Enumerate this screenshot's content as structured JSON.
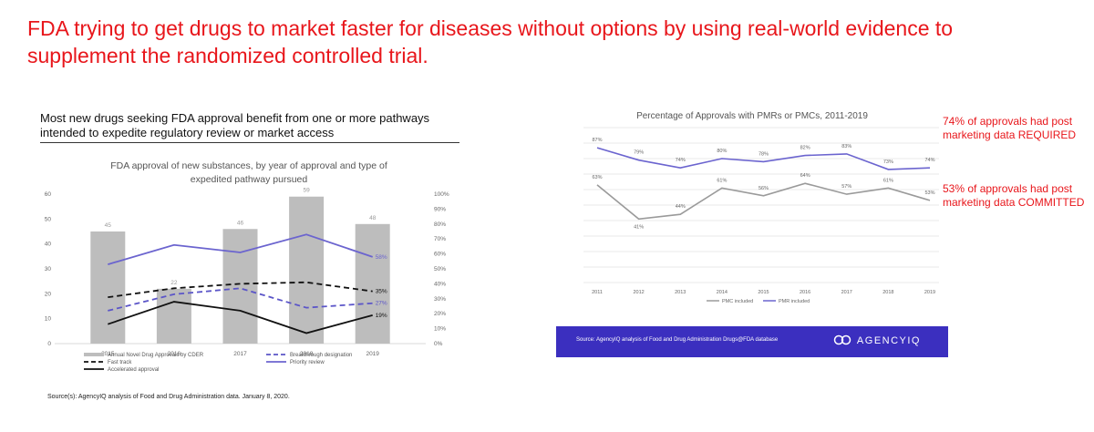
{
  "headline": "FDA trying to get drugs to market faster for diseases without options by using real-world evidence to supplement the randomized controlled trial.",
  "left_panel": {
    "title": "Most new drugs seeking FDA approval benefit from one or more pathways intended to expedite regulatory review or market access",
    "source": "Source(s): AgencyIQ analysis of Food and Drug Administration data. January 8, 2020."
  },
  "right_panel": {
    "source": "Source: AgencyIQ analysis of Food and Drug Administration Drugs@FDA database",
    "logo_text": "AGENCYIQ"
  },
  "annotations": {
    "required": "74% of approvals had post marketing data REQUIRED",
    "committed": "53% of approvals had post marketing data COMMITTED"
  },
  "colors": {
    "headline": "#e8161b",
    "bars": "#bdbdbd",
    "priority": "#6b64cf",
    "breakthrough": "#5b55c8",
    "fast_track": "#111111",
    "accelerated": "#111111",
    "pmr": "#6b64cf",
    "pmc": "#9a9a9a",
    "footer_band": "#3b2fbf"
  },
  "chart_data": [
    {
      "type": "bar",
      "title": "FDA approval of new substances, by year of approval and type of expedited pathway pursued",
      "categories": [
        "2015",
        "2016",
        "2017",
        "2018",
        "2019"
      ],
      "ylim": [
        0,
        60
      ],
      "yticks": [
        "0",
        "10",
        "20",
        "30",
        "40",
        "50",
        "60"
      ],
      "y2lim": [
        0,
        100
      ],
      "y2ticks": [
        "0%",
        "10%",
        "20%",
        "30%",
        "40%",
        "50%",
        "60%",
        "70%",
        "80%",
        "90%",
        "100%"
      ],
      "bar_series": {
        "name": "Annual Novel Drug Approvals by CDER",
        "values": [
          45,
          22,
          46,
          59,
          48
        ],
        "labels": [
          "45",
          "22",
          "46",
          "59",
          "48"
        ]
      },
      "line_series": [
        {
          "name": "Priority review",
          "style": "solid",
          "color_key": "priority",
          "values": [
            53,
            66,
            61,
            73,
            58
          ],
          "end_label": "58%"
        },
        {
          "name": "Breakthrough designation",
          "style": "dashed",
          "color_key": "breakthrough",
          "values": [
            22,
            33,
            37,
            24,
            27
          ],
          "end_label": "27%"
        },
        {
          "name": "Fast track",
          "style": "dashed",
          "color_key": "fast_track",
          "values": [
            31,
            37,
            40,
            41,
            35
          ],
          "end_label": "35%"
        },
        {
          "name": "Accelerated approval",
          "style": "solid",
          "color_key": "accelerated",
          "values": [
            13,
            28,
            22,
            7,
            19
          ],
          "end_label": "19%"
        }
      ],
      "legend": [
        "Annual Novel Drug Approvals by CDER",
        "Breakthrough designation",
        "Fast track",
        "Priority review",
        "Accelerated approval"
      ],
      "legend_position": "bottom"
    },
    {
      "type": "line",
      "title": "Percentage of Approvals with PMRs or PMCs, 2011-2019",
      "x": [
        "2011",
        "2012",
        "2013",
        "2014",
        "2015",
        "2016",
        "2017",
        "2018",
        "2019"
      ],
      "ylim": [
        0,
        100
      ],
      "grid": true,
      "series": [
        {
          "name": "PMR included",
          "color_key": "pmr",
          "values": [
            87,
            79,
            74,
            80,
            78,
            82,
            83,
            73,
            74
          ],
          "labels": [
            "87%",
            "79%",
            "74%",
            "80%",
            "78%",
            "82%",
            "83%",
            "73%",
            "74%"
          ]
        },
        {
          "name": "PMC included",
          "color_key": "pmc",
          "values": [
            63,
            41,
            44,
            61,
            56,
            64,
            57,
            61,
            53
          ],
          "labels": [
            "63%",
            "41%",
            "44%",
            "61%",
            "56%",
            "64%",
            "57%",
            "61%",
            "53%"
          ]
        }
      ],
      "legend": [
        "PMC included",
        "PMR included"
      ],
      "legend_position": "bottom"
    }
  ]
}
